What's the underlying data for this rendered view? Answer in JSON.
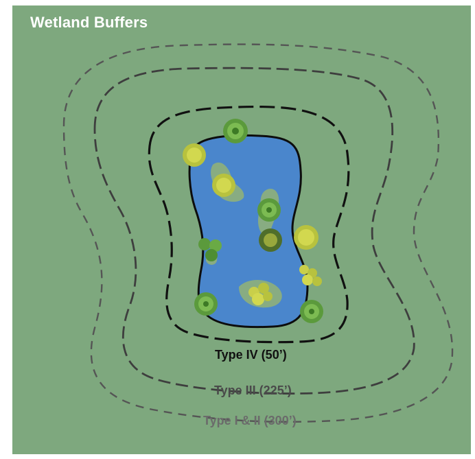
{
  "title": "Wetland Buffers",
  "buffers": [
    {
      "label": "Type IV (50’)",
      "color": "#111111"
    },
    {
      "label": "Type III (225’)",
      "color": "#4a4a4a"
    },
    {
      "label": "Type I & II (300’)",
      "color": "#6b6b6b"
    }
  ],
  "colors": {
    "background": "#7ea87e",
    "water": "#4a86cc",
    "marsh": "#8fb07a"
  },
  "icons": [
    "tree-icon",
    "shrub-icon"
  ]
}
